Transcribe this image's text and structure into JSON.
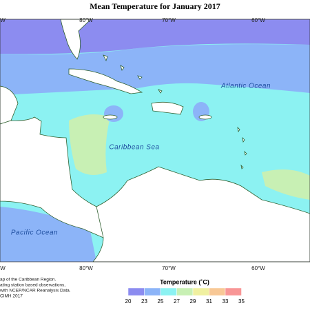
{
  "title": "Mean Temperature for January 2017",
  "longitude_labels": {
    "top": [
      "W",
      "80°W",
      "70°W",
      "60°W"
    ],
    "bottom": [
      "W",
      "80°W",
      "70°W",
      "60°W"
    ]
  },
  "regions": {
    "atlantic": "Atlantic Ocean",
    "caribbean": "Caribbean Sea",
    "pacific": "Pacific Ocean"
  },
  "legend": {
    "title": "Temperature (˚C)",
    "ticks": [
      20,
      23,
      25,
      27,
      29,
      31,
      33,
      35
    ],
    "colors": [
      "#8c8cf0",
      "#8cb4f8",
      "#8cf2f2",
      "#c8f0b4",
      "#f0f0a0",
      "#f8c896",
      "#f89696"
    ]
  },
  "footnote": [
    "ap of the Caribbean Region.",
    "ating station based observations,",
    "with NCEP/NCAR Reanalysis Data.",
    "CIMH 2017"
  ]
}
